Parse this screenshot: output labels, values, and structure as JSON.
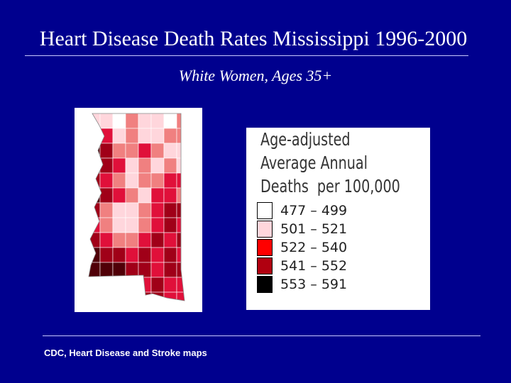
{
  "header": {
    "title": "Heart Disease Death Rates Mississippi 1996-2000",
    "subtitle": "White Women, Ages 35+"
  },
  "legend": {
    "title_lines": [
      "Age-adjusted",
      "Average Annual",
      "Deaths  per 100,000"
    ],
    "items": [
      {
        "label": "477 – 499",
        "color": "#ffffff"
      },
      {
        "label": "501 – 521",
        "color": "#ffd6dc"
      },
      {
        "label": "522 – 540",
        "color": "#ff0000"
      },
      {
        "label": "541 – 552",
        "color": "#b00010"
      },
      {
        "label": "553 – 591",
        "color": "#000000"
      }
    ]
  },
  "footer": {
    "source": "CDC, Heart Disease and Stroke maps"
  }
}
